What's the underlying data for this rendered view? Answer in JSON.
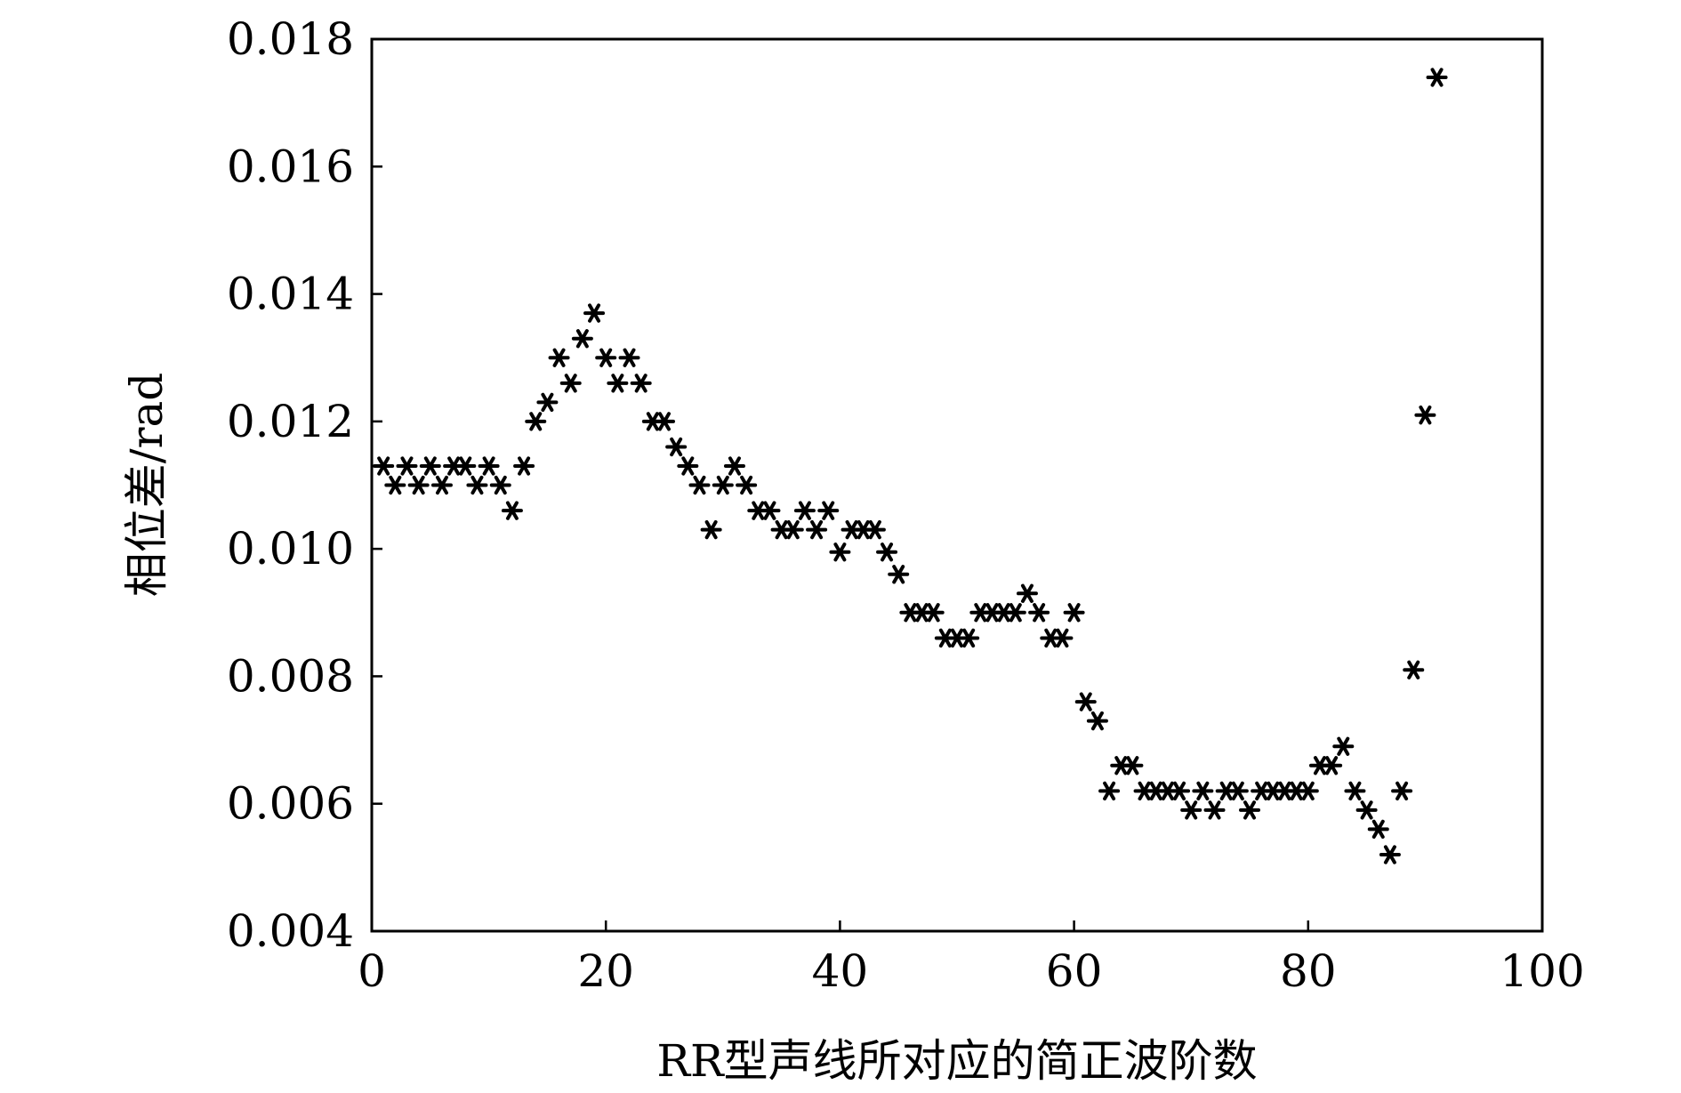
{
  "chart_data": {
    "type": "scatter",
    "xlabel": "RR型声线所对应的简正波阶数",
    "ylabel": "相位差/rad",
    "xlim": [
      0,
      100
    ],
    "ylim": [
      0.004,
      0.018
    ],
    "xticks": [
      "0",
      "20",
      "40",
      "60",
      "80",
      "100"
    ],
    "yticks": [
      "0.004",
      "0.006",
      "0.008",
      "0.010",
      "0.012",
      "0.014",
      "0.016",
      "0.018"
    ],
    "grid": false,
    "marker": "*",
    "series": [
      {
        "x": [
          1,
          2,
          3,
          4,
          5,
          6,
          7,
          8,
          9,
          10,
          11,
          12,
          13,
          14,
          15,
          16,
          17,
          18,
          19,
          20,
          21,
          22,
          23,
          24,
          25,
          26,
          27,
          28,
          29,
          30,
          31,
          32,
          33,
          34,
          35,
          36,
          37,
          38,
          39,
          40,
          41,
          42,
          43,
          44,
          45,
          46,
          47,
          48,
          49,
          50,
          51,
          52,
          53,
          54,
          55,
          56,
          57,
          58,
          59,
          60,
          61,
          62,
          63,
          64,
          65,
          66,
          67,
          68,
          69,
          70,
          71,
          72,
          73,
          74,
          75,
          76,
          77,
          78,
          79,
          80,
          81,
          82,
          83,
          84,
          85,
          86,
          87,
          88,
          89,
          90,
          91
        ],
        "y": [
          0.0113,
          0.011,
          0.0113,
          0.011,
          0.0113,
          0.011,
          0.0113,
          0.0113,
          0.011,
          0.0113,
          0.011,
          0.0106,
          0.0113,
          0.012,
          0.0123,
          0.013,
          0.0126,
          0.0133,
          0.0137,
          0.013,
          0.0126,
          0.013,
          0.0126,
          0.012,
          0.012,
          0.0116,
          0.0113,
          0.011,
          0.0103,
          0.011,
          0.0113,
          0.011,
          0.0106,
          0.0106,
          0.0103,
          0.0103,
          0.0106,
          0.0103,
          0.0106,
          0.00995,
          0.0103,
          0.0103,
          0.0103,
          0.00995,
          0.0096,
          0.009,
          0.009,
          0.009,
          0.0086,
          0.0086,
          0.0086,
          0.009,
          0.009,
          0.009,
          0.009,
          0.0093,
          0.009,
          0.0086,
          0.0086,
          0.009,
          0.0076,
          0.0073,
          0.0062,
          0.0066,
          0.0066,
          0.0062,
          0.0062,
          0.0062,
          0.0062,
          0.0059,
          0.0062,
          0.0059,
          0.0062,
          0.0062,
          0.0059,
          0.0062,
          0.0062,
          0.0062,
          0.0062,
          0.0062,
          0.0066,
          0.0066,
          0.0069,
          0.0062,
          0.0059,
          0.0056,
          0.0052,
          0.0062,
          0.0081,
          0.0121,
          0.0174
        ]
      }
    ]
  }
}
